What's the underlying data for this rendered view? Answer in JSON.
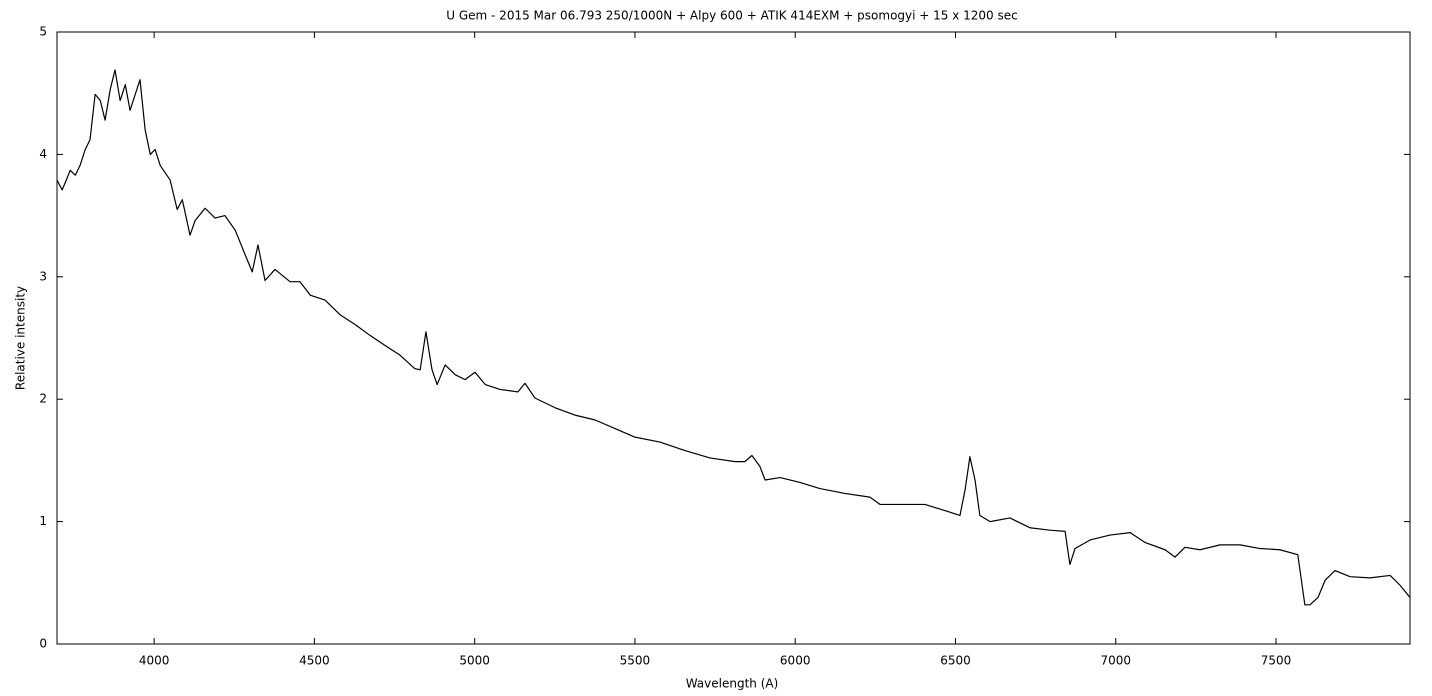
{
  "chart_data": {
    "type": "line",
    "title": "U Gem - 2015 Mar 06.793 250/1000N + Alpy 600 + ATIK 414EXM + psomogyi + 15 x 1200 sec",
    "x_label": "Wavelength (A)",
    "y_label": "Relative intensity",
    "color": "#000000",
    "x": [
      3697,
      3713,
      3726,
      3738,
      3754,
      3769,
      3785,
      3800,
      3816,
      3832,
      3847,
      3863,
      3878,
      3894,
      3910,
      3925,
      3941,
      3956,
      3972,
      3988,
      4003,
      4019,
      4050,
      4072,
      4088,
      4112,
      4128,
      4159,
      4190,
      4221,
      4253,
      4284,
      4306,
      4324,
      4346,
      4377,
      4424,
      4455,
      4487,
      4533,
      4580,
      4627,
      4674,
      4720,
      4767,
      4813,
      4830,
      4848,
      4867,
      4883,
      4908,
      4939,
      4970,
      5001,
      5033,
      5079,
      5135,
      5157,
      5188,
      5251,
      5313,
      5376,
      5438,
      5500,
      5578,
      5656,
      5734,
      5812,
      5843,
      5865,
      5890,
      5906,
      5953,
      6015,
      6077,
      6155,
      6233,
      6265,
      6327,
      6405,
      6467,
      6514,
      6530,
      6545,
      6561,
      6576,
      6608,
      6670,
      6732,
      6795,
      6842,
      6857,
      6873,
      6920,
      6982,
      7045,
      7091,
      7154,
      7185,
      7216,
      7263,
      7325,
      7388,
      7450,
      7512,
      7568,
      7590,
      7606,
      7631,
      7653,
      7684,
      7731,
      7793,
      7856,
      7887,
      7918
    ],
    "values": [
      3.79,
      3.71,
      3.79,
      3.87,
      3.83,
      3.91,
      4.04,
      4.12,
      4.49,
      4.44,
      4.28,
      4.53,
      4.69,
      4.44,
      4.57,
      4.36,
      4.49,
      4.61,
      4.2,
      4.0,
      4.04,
      3.91,
      3.79,
      3.55,
      3.63,
      3.34,
      3.46,
      3.56,
      3.48,
      3.5,
      3.38,
      3.18,
      3.04,
      3.26,
      2.97,
      3.06,
      2.96,
      2.96,
      2.85,
      2.81,
      2.69,
      2.61,
      2.52,
      2.44,
      2.36,
      2.25,
      2.24,
      2.55,
      2.24,
      2.12,
      2.28,
      2.2,
      2.16,
      2.22,
      2.12,
      2.08,
      2.06,
      2.13,
      2.01,
      1.93,
      1.87,
      1.83,
      1.76,
      1.69,
      1.65,
      1.58,
      1.52,
      1.49,
      1.49,
      1.54,
      1.45,
      1.34,
      1.36,
      1.32,
      1.27,
      1.23,
      1.2,
      1.14,
      1.14,
      1.14,
      1.09,
      1.05,
      1.26,
      1.53,
      1.34,
      1.05,
      1.0,
      1.03,
      0.95,
      0.93,
      0.92,
      0.65,
      0.78,
      0.85,
      0.89,
      0.91,
      0.83,
      0.77,
      0.71,
      0.79,
      0.77,
      0.81,
      0.81,
      0.78,
      0.77,
      0.73,
      0.32,
      0.32,
      0.38,
      0.52,
      0.6,
      0.55,
      0.54,
      0.56,
      0.48,
      0.38
    ],
    "xlim": [
      3697,
      7918
    ],
    "ylim": [
      0,
      5
    ],
    "xticks": [
      4000,
      4500,
      5000,
      5500,
      6000,
      6500,
      7000,
      7500
    ],
    "yticks": [
      0,
      1,
      2,
      3,
      4,
      5
    ]
  }
}
